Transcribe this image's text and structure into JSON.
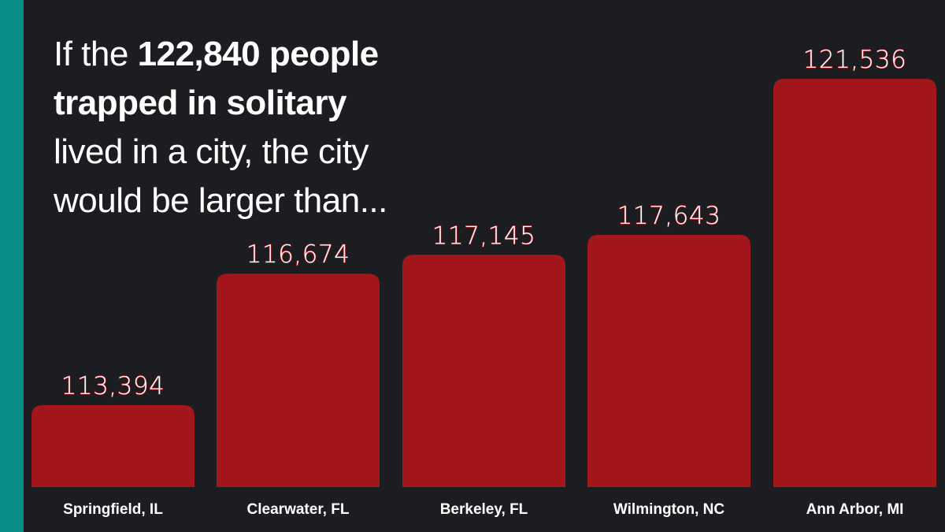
{
  "headline": {
    "part1": "If the ",
    "bold1": "122,840 people",
    "part2": " ",
    "bold2": "trapped in solitary",
    "part3": " lived in a city, the city would be larger than..."
  },
  "colors": {
    "background": "#1b1d20",
    "accent": "#078c87",
    "bar": "#a3161b",
    "value_text": "#ffffff",
    "value_outline": "#c0202a",
    "category_text": "#ffffff"
  },
  "chart_data": {
    "type": "bar",
    "categories": [
      "Springfield, IL",
      "Clearwater, FL",
      "Berkeley, FL",
      "Wilmington, NC",
      "Ann Arbor, MI"
    ],
    "values": [
      113394,
      116674,
      117145,
      117643,
      121536
    ],
    "value_labels": [
      "113,394",
      "116,674",
      "117,145",
      "117,643",
      "121,536"
    ],
    "title": "",
    "xlabel": "",
    "ylabel": "",
    "grid": false,
    "legend": "none"
  }
}
